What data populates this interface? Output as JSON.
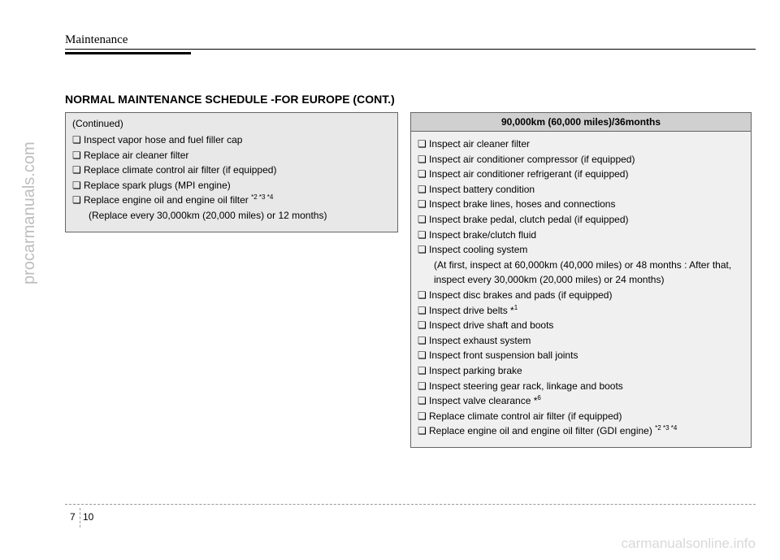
{
  "header": {
    "chapter": "Maintenance"
  },
  "section_title": "NORMAL MAINTENANCE SCHEDULE -FOR EUROPE (CONT.)",
  "left": {
    "continued": "(Continued)",
    "items": [
      "Inspect vapor hose and fuel filler cap",
      "Replace air cleaner filter",
      "Replace climate control air filter (if equipped)",
      "Replace spark plugs (MPI engine)"
    ],
    "last_item": "Replace engine oil and engine oil filter ",
    "last_sup": "*2 *3 *4",
    "last_sub": "(Replace every 30,000km (20,000 miles) or 12 months)"
  },
  "right": {
    "header": "90,000km (60,000 miles)/36months",
    "items": [
      {
        "text": "Inspect air cleaner filter"
      },
      {
        "text": "Inspect air conditioner compressor (if equipped)"
      },
      {
        "text": "Inspect air conditioner refrigerant (if equipped)"
      },
      {
        "text": "Inspect battery condition"
      },
      {
        "text": "Inspect brake lines, hoses and connections"
      },
      {
        "text": "Inspect brake pedal, clutch pedal (if equipped)"
      },
      {
        "text": "Inspect brake/clutch fluid"
      },
      {
        "text": "Inspect cooling system",
        "sub": "(At first, inspect at 60,000km (40,000 miles) or 48 months : After that, inspect every 30,000km (20,000 miles) or 24 months)"
      },
      {
        "text": "Inspect disc brakes and pads (if equipped)"
      },
      {
        "text": "Inspect drive belts *",
        "sup": "1"
      },
      {
        "text": "Inspect drive shaft and boots"
      },
      {
        "text": "Inspect exhaust system"
      },
      {
        "text": "Inspect front suspension ball joints"
      },
      {
        "text": "Inspect parking brake"
      },
      {
        "text": "Inspect steering gear rack, linkage and boots"
      },
      {
        "text": "Inspect valve clearance *",
        "sup": "6"
      },
      {
        "text": "Replace climate control air filter (if equipped)"
      },
      {
        "text": "Replace engine oil and engine oil filter (GDI engine) ",
        "sup": "*2 *3 *4"
      }
    ]
  },
  "footer": {
    "chapter_num": "7",
    "page_num": "10"
  },
  "watermarks": {
    "left": "procarmanuals.com",
    "bottom": "carmanualsonline.info"
  },
  "layout": {
    "background_color": "#ffffff",
    "left_box_bg": "#e8e8e8",
    "right_box_bg": "#f0f0f0",
    "right_header_bg": "#d0d0d0",
    "body_fontsize": 12,
    "title_fontsize": 14,
    "bullet": "❏"
  }
}
